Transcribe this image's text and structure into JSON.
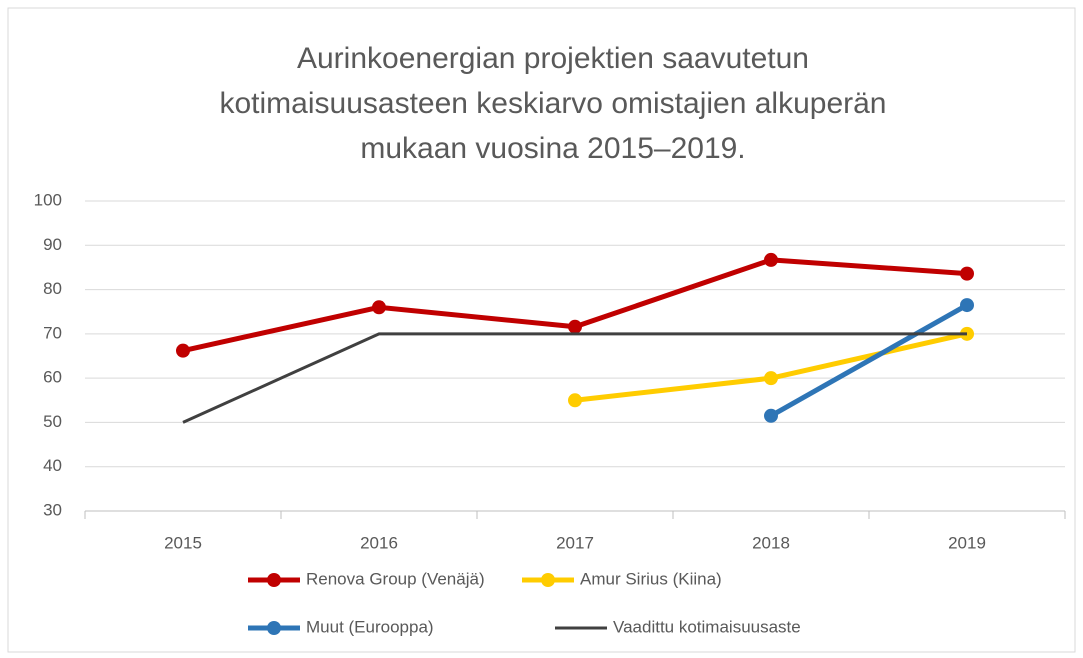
{
  "chart_data": {
    "type": "line",
    "title": [
      "Aurinkoenergian projektien saavutetun",
      "kotimaisuusasteen keskiarvo omistajien alkuperän",
      "mukaan vuosina 2015–2019."
    ],
    "categories": [
      "2015",
      "2016",
      "2017",
      "2018",
      "2019"
    ],
    "series": [
      {
        "name": "Renova Group (Venäjä)",
        "color": "#c00000",
        "markers": true,
        "values": [
          66.2,
          76,
          71.6,
          86.7,
          83.6
        ]
      },
      {
        "name": "Amur Sirius (Kiina)",
        "color": "#ffcc00",
        "markers": true,
        "values": [
          null,
          null,
          55,
          60,
          70
        ]
      },
      {
        "name": "Muut (Eurooppa)",
        "color": "#2e75b6",
        "markers": true,
        "values": [
          null,
          null,
          null,
          51.5,
          76.5
        ]
      },
      {
        "name": "Vaadittu kotimaisuusaste",
        "color": "#404040",
        "markers": false,
        "values": [
          50,
          70,
          70,
          70,
          70
        ]
      }
    ],
    "ylim": [
      30,
      100
    ],
    "yticks": [
      30,
      40,
      50,
      60,
      70,
      80,
      90,
      100
    ],
    "grid": true,
    "legend": "bottom"
  }
}
